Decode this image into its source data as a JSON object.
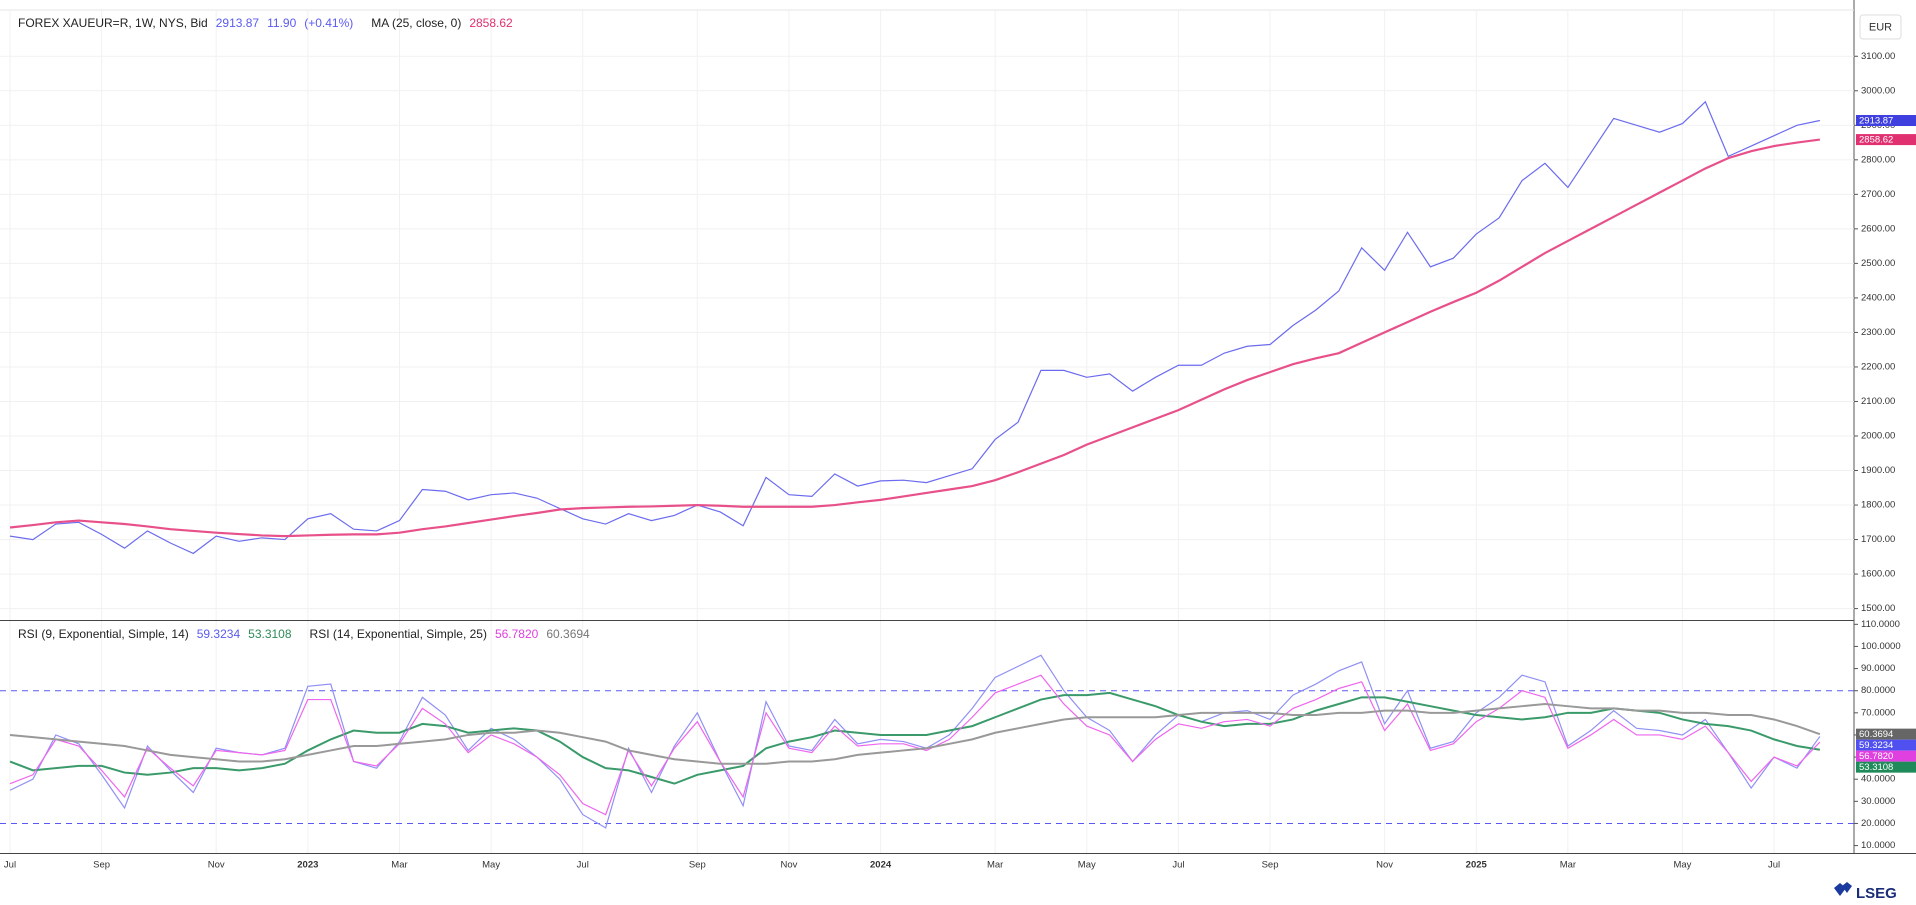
{
  "ui": {
    "currency": "EUR",
    "logo": "LSEG"
  },
  "chart_data": [
    {
      "type": "line",
      "ylim": [
        1467,
        3234
      ],
      "yticks": [
        {
          "value": 1500,
          "label": "1500.00"
        },
        {
          "value": 1600,
          "label": "1600.00"
        },
        {
          "value": 1700,
          "label": "1700.00"
        },
        {
          "value": 1800,
          "label": "1800.00"
        },
        {
          "value": 1900,
          "label": "1900.00"
        },
        {
          "value": 2000,
          "label": "2000.00"
        },
        {
          "value": 2100,
          "label": "2100.00"
        },
        {
          "value": 2200,
          "label": "2200.00"
        },
        {
          "value": 2300,
          "label": "2300.00"
        },
        {
          "value": 2400,
          "label": "2400.00"
        },
        {
          "value": 2500,
          "label": "2500.00"
        },
        {
          "value": 2600,
          "label": "2600.00"
        },
        {
          "value": 2700,
          "label": "2700.00"
        },
        {
          "value": 2800,
          "label": "2800.00"
        },
        {
          "value": 2900,
          "label": "2900.00"
        },
        {
          "value": 3000,
          "label": "3000.00"
        },
        {
          "value": 3100,
          "label": "3100.00"
        }
      ],
      "grid": true,
      "legend": [
        {
          "name": "FOREX XAUEUR=R, 1W, NYS, Bid",
          "values": [
            "2913.87",
            "11.90",
            "(+0.41%)"
          ],
          "colors": [
            "#5b5bf0",
            "#5b5bf0",
            "#5b5bf0"
          ]
        },
        {
          "name": "MA (25, close, 0)",
          "values": [
            "2858.62"
          ],
          "colors": [
            "#e0306f"
          ]
        }
      ],
      "series": [
        {
          "color": "#6b6bef",
          "tag": "2913.87",
          "tag_color": "#3f3fe0",
          "values": [
            1710,
            1700,
            1745,
            1750,
            1715,
            1675,
            1725,
            1690,
            1660,
            1710,
            1695,
            1705,
            1700,
            1760,
            1775,
            1730,
            1725,
            1755,
            1845,
            1840,
            1815,
            1830,
            1835,
            1820,
            1790,
            1760,
            1745,
            1775,
            1755,
            1770,
            1800,
            1780,
            1740,
            1880,
            1830,
            1825,
            1890,
            1855,
            1870,
            1872,
            1865,
            1885,
            1905,
            1990,
            2040,
            2190,
            2190,
            2170,
            2180,
            2130,
            2170,
            2205,
            2205,
            2240,
            2260,
            2265,
            2320,
            2365,
            2420,
            2545,
            2480,
            2590,
            2490,
            2515,
            2585,
            2632,
            2740,
            2790,
            2720,
            2820,
            2920,
            2900,
            2880,
            2905,
            2968,
            2810,
            2840,
            2870,
            2900,
            2913.87
          ]
        },
        {
          "color": "#e8508a",
          "tag": "2858.62",
          "tag_color": "#e0306f",
          "values": [
            1735,
            1742,
            1750,
            1755,
            1750,
            1745,
            1738,
            1730,
            1725,
            1720,
            1716,
            1712,
            1710,
            1712,
            1714,
            1715,
            1715,
            1720,
            1730,
            1738,
            1748,
            1758,
            1768,
            1777,
            1787,
            1791,
            1793,
            1795,
            1796,
            1798,
            1800,
            1798,
            1795,
            1795,
            1795,
            1795,
            1800,
            1808,
            1815,
            1825,
            1835,
            1845,
            1855,
            1872,
            1895,
            1920,
            1945,
            1975,
            2000,
            2025,
            2050,
            2075,
            2105,
            2135,
            2162,
            2185,
            2208,
            2225,
            2240,
            2270,
            2300,
            2330,
            2360,
            2388,
            2415,
            2450,
            2490,
            2530,
            2565,
            2600,
            2635,
            2670,
            2705,
            2740,
            2775,
            2805,
            2825,
            2840,
            2850,
            2858.62
          ]
        }
      ]
    },
    {
      "type": "line",
      "categories": [
        "Jul",
        null,
        null,
        null,
        "Sep",
        null,
        null,
        null,
        null,
        "Nov",
        null,
        null,
        null,
        "2023",
        null,
        null,
        null,
        "Mar",
        null,
        null,
        null,
        "May",
        null,
        null,
        null,
        "Jul",
        null,
        null,
        null,
        null,
        "Sep",
        null,
        null,
        null,
        "Nov",
        null,
        null,
        null,
        "2024",
        null,
        null,
        null,
        null,
        "Mar",
        null,
        null,
        null,
        "May",
        null,
        null,
        null,
        "Jul",
        null,
        null,
        null,
        "Sep",
        null,
        null,
        null,
        null,
        "Nov",
        null,
        null,
        null,
        "2025",
        null,
        null,
        null,
        "Mar",
        null,
        null,
        null,
        null,
        "May",
        null,
        null,
        null,
        "Jul",
        null,
        null
      ],
      "ylim": [
        6.65,
        111.5
      ],
      "yticks": [
        {
          "value": 10,
          "label": "10.0000"
        },
        {
          "value": 20,
          "label": "20.0000"
        },
        {
          "value": 30,
          "label": "30.0000"
        },
        {
          "value": 40,
          "label": "40.0000"
        },
        {
          "value": 50,
          "label": "50.0000"
        },
        {
          "value": 60,
          "label": "60.0000"
        },
        {
          "value": 70,
          "label": "70.0000"
        },
        {
          "value": 80,
          "label": "80.0000"
        },
        {
          "value": 90,
          "label": "90.0000"
        },
        {
          "value": 100,
          "label": "100.0000"
        },
        {
          "value": 110,
          "label": "110.0000"
        }
      ],
      "hlines": [
        80,
        20
      ],
      "hline_color": "#5a5af0",
      "legend": [
        {
          "name": "RSI (9, Exponential, Simple, 14)",
          "values": [
            "59.3234",
            "53.3108"
          ],
          "colors": [
            "#5b5bf0",
            "#2e8b57"
          ]
        },
        {
          "name": "RSI (14, Exponential, Simple, 25)",
          "values": [
            "56.7820",
            "60.3694"
          ],
          "colors": [
            "#e040e0",
            "#777777"
          ]
        }
      ],
      "series": [
        {
          "color": "#9090f5",
          "tag": "59.3234",
          "tag_color": "#5050f0",
          "values": [
            35,
            40,
            60,
            56,
            42,
            27,
            55,
            44,
            34,
            54,
            52,
            51,
            54,
            82,
            83,
            48,
            45,
            57,
            77,
            69,
            53,
            63,
            58,
            50,
            40,
            24,
            18,
            54,
            34,
            55,
            70,
            48,
            28,
            75,
            55,
            53,
            67,
            56,
            58,
            57,
            54,
            60,
            72,
            86,
            91,
            96,
            80,
            68,
            62,
            48,
            60,
            69,
            66,
            70,
            71,
            67,
            78,
            83,
            89,
            93,
            65,
            80,
            54,
            57,
            70,
            77,
            87,
            84,
            55,
            62,
            71,
            63,
            62,
            60,
            67,
            52,
            36,
            50,
            45,
            59.3234
          ]
        },
        {
          "color": "#3a9a6a",
          "tag": "53.3108",
          "tag_color": "#1f8a5a",
          "values": [
            48,
            44,
            45,
            46,
            46,
            43,
            42,
            43,
            45,
            45,
            44,
            45,
            47,
            53,
            58,
            62,
            61,
            61,
            65,
            64,
            61,
            62,
            63,
            62,
            57,
            50,
            45,
            44,
            41,
            38,
            42,
            44,
            46,
            54,
            57,
            59,
            62,
            61,
            60,
            60,
            60,
            62,
            64,
            68,
            72,
            76,
            78,
            78,
            79,
            76,
            73,
            69,
            66,
            64,
            65,
            65,
            67,
            71,
            74,
            77,
            77,
            75,
            73,
            71,
            69,
            68,
            67,
            68,
            70,
            70,
            72,
            71,
            70,
            67,
            65,
            64,
            62,
            58,
            55,
            53.3108
          ]
        },
        {
          "color": "#ee66ee",
          "tag": "56.7820",
          "tag_color": "#e040e0",
          "values": [
            38,
            42,
            58,
            55,
            44,
            32,
            54,
            45,
            37,
            53,
            52,
            51,
            53,
            76,
            76,
            48,
            46,
            56,
            72,
            65,
            52,
            60,
            56,
            50,
            42,
            29,
            24,
            53,
            37,
            54,
            66,
            48,
            32,
            70,
            54,
            52,
            64,
            55,
            56,
            56,
            53,
            58,
            68,
            79,
            83,
            87,
            74,
            64,
            60,
            48,
            58,
            65,
            63,
            66,
            67,
            64,
            72,
            76,
            81,
            84,
            62,
            74,
            53,
            56,
            66,
            72,
            80,
            77,
            54,
            60,
            67,
            60,
            60,
            58,
            64,
            52,
            39,
            50,
            46,
            56.782
          ]
        },
        {
          "color": "#999999",
          "tag": "60.3694",
          "tag_color": "#666666",
          "values": [
            60,
            59,
            58,
            57,
            56,
            55,
            53,
            51,
            50,
            49,
            48,
            48,
            49,
            51,
            53,
            55,
            55,
            56,
            57,
            58,
            60,
            61,
            61,
            62,
            61,
            59,
            57,
            53,
            51,
            49,
            48,
            47,
            47,
            47,
            48,
            48,
            49,
            51,
            52,
            53,
            54,
            56,
            58,
            61,
            63,
            65,
            67,
            68,
            68,
            68,
            68,
            69,
            70,
            70,
            70,
            70,
            69,
            69,
            70,
            70,
            71,
            71,
            70,
            70,
            71,
            72,
            73,
            74,
            73,
            72,
            72,
            71,
            71,
            70,
            70,
            69,
            69,
            67,
            64,
            60.3694
          ]
        }
      ]
    }
  ]
}
